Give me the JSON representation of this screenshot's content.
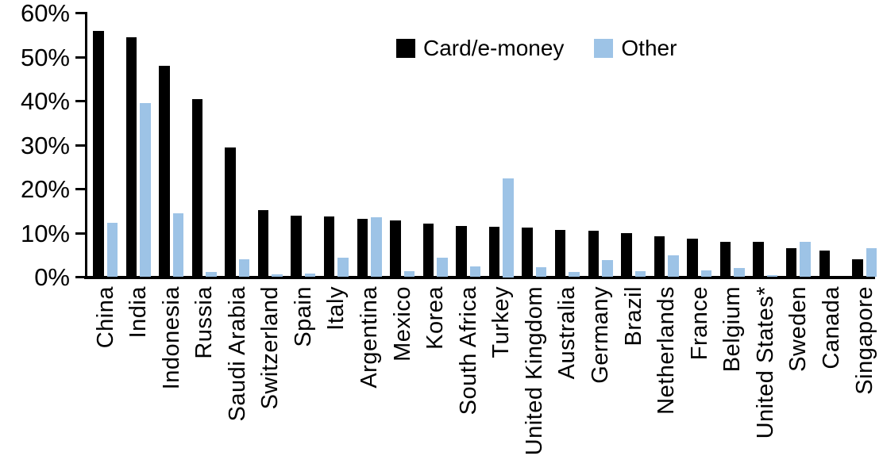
{
  "chart_data": {
    "type": "bar",
    "title": "",
    "xlabel": "",
    "ylabel": "",
    "ylim": [
      0,
      60
    ],
    "ytick_step": 10,
    "ytick_labels": [
      "0%",
      "10%",
      "20%",
      "30%",
      "40%",
      "50%",
      "60%"
    ],
    "grid": false,
    "legend_position": "top-center-inside",
    "categories": [
      "China",
      "India",
      "Indonesia",
      "Russia",
      "Saudi Arabia",
      "Switzerland",
      "Spain",
      "Italy",
      "Argentina",
      "Mexico",
      "Korea",
      "South Africa",
      "Turkey",
      "United Kingdom",
      "Australia",
      "Germany",
      "Brazil",
      "Netherlands",
      "France",
      "Belgium",
      "United States*",
      "Sweden",
      "Canada",
      "Singapore"
    ],
    "series": [
      {
        "name": "Card/e-money",
        "color": "#000000",
        "values": [
          56,
          54.5,
          48,
          40.5,
          29.5,
          15.3,
          14,
          13.7,
          13.2,
          12.8,
          12.2,
          11.7,
          11.5,
          11.2,
          10.8,
          10.6,
          10,
          9.3,
          8.7,
          8.1,
          8,
          6.6,
          6,
          4
        ]
      },
      {
        "name": "Other",
        "color": "#9DC3E6",
        "values": [
          12.4,
          39.5,
          14.5,
          1.1,
          4,
          0.7,
          0.9,
          4.4,
          13.6,
          1.3,
          4.5,
          2.4,
          22.5,
          2.3,
          1.1,
          3.9,
          1.3,
          4.9,
          1.6,
          2,
          0.4,
          8.1,
          0,
          6.6
        ]
      }
    ]
  },
  "colors": {
    "axis": "#000000",
    "background": "#FFFFFF",
    "text": "#000000"
  }
}
